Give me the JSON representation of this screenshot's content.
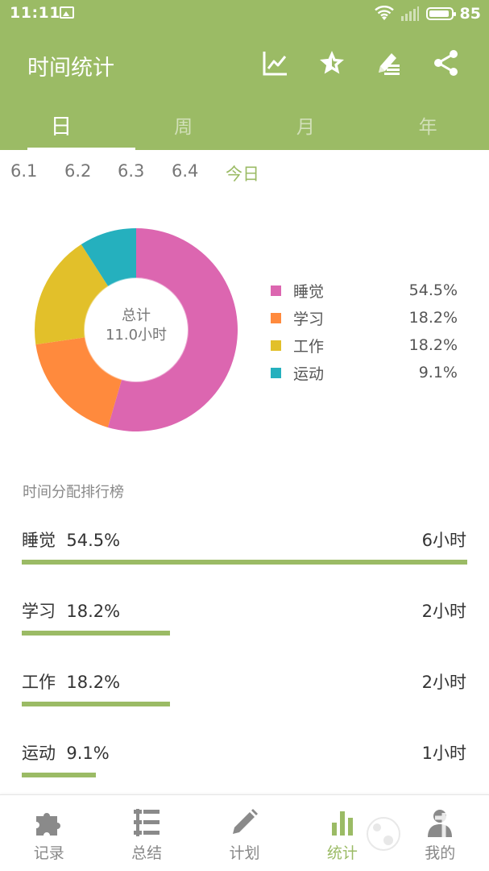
{
  "status_bar": {
    "time": "11:11",
    "battery_level": "85"
  },
  "app_title": "时间统计",
  "actions": [
    {
      "name": "trend-icon"
    },
    {
      "name": "star-icon"
    },
    {
      "name": "edit-list-icon"
    },
    {
      "name": "share-icon"
    }
  ],
  "tabs": [
    "日",
    "周",
    "月",
    "年"
  ],
  "active_tab": "日",
  "dates": [
    "6.1",
    "6.2",
    "6.3",
    "6.4",
    "今日"
  ],
  "selected_date": "今日",
  "chart_center": {
    "label": "总计",
    "total": "11.0小时"
  },
  "chart_data": {
    "type": "pie",
    "categories": [
      "睡觉",
      "学习",
      "工作",
      "运动"
    ],
    "values": [
      54.5,
      18.2,
      18.2,
      9.1
    ],
    "labels": [
      "54.5%",
      "18.2%",
      "18.2%",
      "9.1%"
    ],
    "colors": [
      "#DC66B0",
      "#FF8A3D",
      "#E2C02A",
      "#25B0BE"
    ],
    "legend_position": "right",
    "title": "",
    "donut": true
  },
  "ranking": {
    "title": "时间分配排行榜",
    "items": [
      {
        "name": "睡觉",
        "pct": "54.5%",
        "hours": "6小时",
        "fraction": 1.0
      },
      {
        "name": "学习",
        "pct": "18.2%",
        "hours": "2小时",
        "fraction": 0.333
      },
      {
        "name": "工作",
        "pct": "18.2%",
        "hours": "2小时",
        "fraction": 0.333
      },
      {
        "name": "运动",
        "pct": "9.1%",
        "hours": "1小时",
        "fraction": 0.167
      }
    ]
  },
  "bottom_nav": [
    {
      "label": "记录",
      "icon": "puzzle-icon"
    },
    {
      "label": "总结",
      "icon": "list-icon"
    },
    {
      "label": "计划",
      "icon": "pencil-icon"
    },
    {
      "label": "统计",
      "icon": "bar-chart-icon"
    },
    {
      "label": "我的",
      "icon": "person-icon"
    }
  ],
  "active_nav": "统计",
  "colors": {
    "accent": "#9BBB65",
    "inactive": "#888888"
  }
}
